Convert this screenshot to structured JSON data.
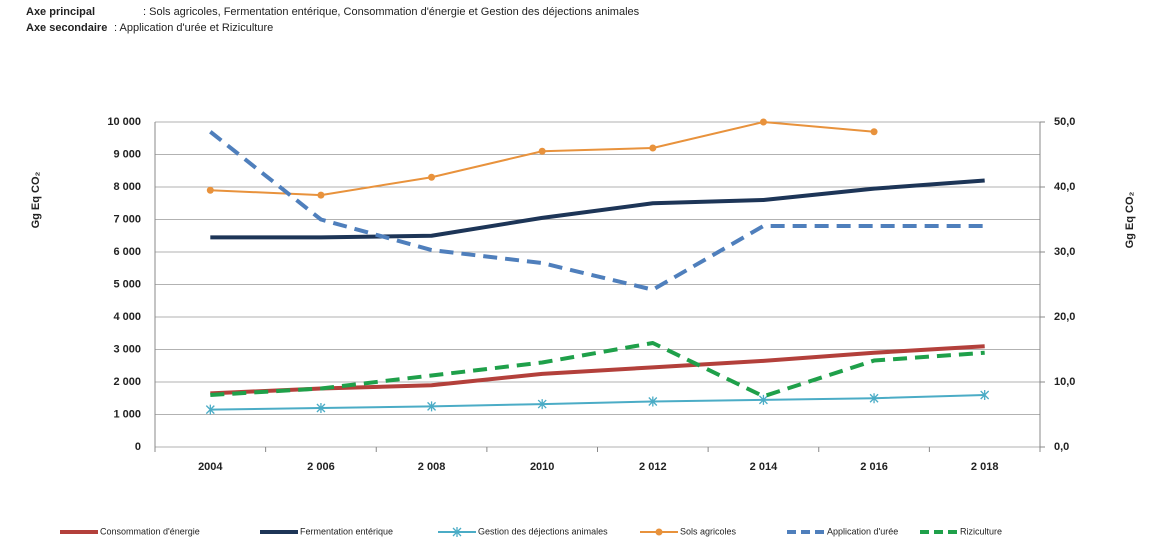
{
  "header": {
    "line1_label": "Axe principal",
    "line1_text": ": Sols agricoles,  Fermentation entérique, Consommation d'énergie et Gestion des déjections animales",
    "line2_label": "Axe secondaire",
    "line2_text": ": Application d'urée et Riziculture"
  },
  "chart_data": {
    "type": "line",
    "y_label": "Gg Eq CO₂",
    "y2_label": "Gg Eq CO₂",
    "categories": [
      "2004",
      "2 006",
      "2 008",
      "2010",
      "2 012",
      "2 014",
      "2 016",
      "2 018"
    ],
    "ylim": [
      0,
      10000
    ],
    "yticks": [
      0,
      {
        "value": 1000,
        "label": "1 000"
      },
      {
        "value": 2000,
        "label": "2 000"
      },
      {
        "value": 3000,
        "label": "3 000"
      },
      {
        "value": 4000,
        "label": "4 000"
      },
      {
        "value": 5000,
        "label": "5 000"
      },
      {
        "value": 6000,
        "label": "6 000"
      },
      {
        "value": 7000,
        "label": "7 000"
      },
      {
        "value": 8000,
        "label": "8 000"
      },
      {
        "value": 9000,
        "label": "9 000"
      },
      {
        "value": 10000,
        "label": "10 000"
      }
    ],
    "y2lim": [
      0,
      50
    ],
    "y2ticks": [
      {
        "value": 0,
        "label": "0,0"
      },
      {
        "value": 10,
        "label": "10,0"
      },
      {
        "value": 20,
        "label": "20,0"
      },
      {
        "value": 30,
        "label": "30,0"
      },
      {
        "value": 40,
        "label": "40,0"
      },
      {
        "value": 50,
        "label": "50,0"
      }
    ],
    "grid": true,
    "legend": "bottom",
    "series": [
      {
        "name": "Consommation d'énergie",
        "color": "#b3403b",
        "width": 4,
        "values": [
          1650,
          1800,
          1900,
          2250,
          2450,
          2650,
          2900,
          3100
        ]
      },
      {
        "name": "Fermentation entérique",
        "color": "#1d3557",
        "width": 4,
        "values": [
          6450,
          6450,
          6500,
          7050,
          7500,
          7600,
          7950,
          8200
        ]
      },
      {
        "name": "Gestion des déjections animales",
        "color": "#4bacc6",
        "width": 2,
        "marker": "star",
        "values": [
          1150,
          1200,
          1250,
          1320,
          1400,
          1450,
          1500,
          1600
        ]
      },
      {
        "name": "Sols agricoles",
        "color": "#e8923c",
        "width": 2,
        "marker": "circle",
        "values": [
          7900,
          7750,
          8300,
          9100,
          9200,
          10000,
          9700,
          null
        ]
      },
      {
        "name": "Application d'urée",
        "color": "#4f7fbc",
        "width": 4,
        "dash": true,
        "axis": "y2",
        "values": [
          48.5,
          35,
          30.3,
          28.3,
          24.2,
          34,
          34,
          34
        ]
      },
      {
        "name": "Riziculture",
        "color": "#1fa04a",
        "width": 4,
        "dash": true,
        "axis": "y2",
        "values": [
          8,
          9,
          11,
          13,
          16,
          7.8,
          13.3,
          14.5
        ]
      }
    ]
  }
}
